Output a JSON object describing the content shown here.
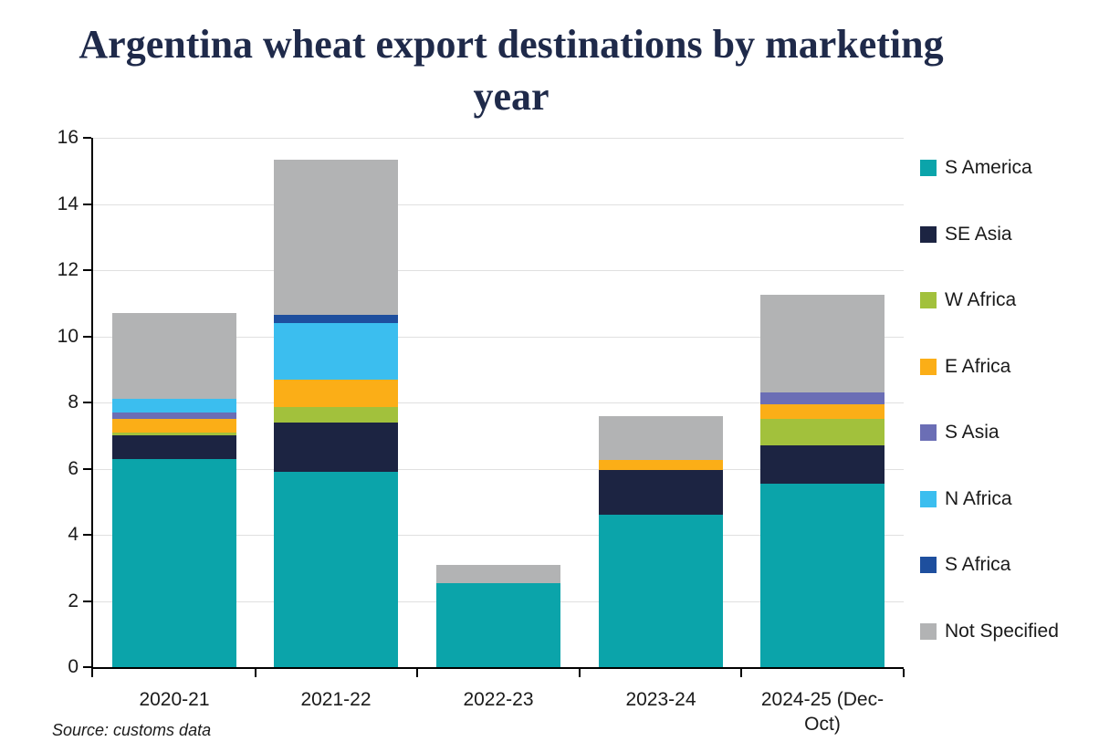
{
  "title": "Argentina wheat export destinations by marketing year",
  "source": "Source: customs data",
  "colors": {
    "title_text": "#1F2A4A",
    "axis": "#000000",
    "gridline": "#E0E0E0"
  },
  "chart_data": {
    "type": "bar",
    "subtype": "stacked-vertical",
    "title": "Argentina wheat export destinations by marketing year",
    "xlabel": "",
    "ylabel": "",
    "ylim": [
      0,
      16
    ],
    "yticks": [
      0,
      2,
      4,
      6,
      8,
      10,
      12,
      14,
      16
    ],
    "grid": true,
    "legend_position": "right",
    "categories": [
      "2020-21",
      "2021-22",
      "2022-23",
      "2023-24",
      "2024-25 (Dec-Oct)"
    ],
    "series": [
      {
        "name": "S America",
        "color": "#0BA4AA",
        "values": [
          6.3,
          5.9,
          2.55,
          4.6,
          5.55
        ]
      },
      {
        "name": "SE Asia",
        "color": "#1C2442",
        "values": [
          0.7,
          1.5,
          0,
          1.35,
          1.15
        ]
      },
      {
        "name": "W Africa",
        "color": "#A2C13C",
        "values": [
          0.1,
          0.45,
          0,
          0,
          0.8
        ]
      },
      {
        "name": "E Africa",
        "color": "#FBAE17",
        "values": [
          0.4,
          0.85,
          0,
          0.3,
          0.45
        ]
      },
      {
        "name": "S Asia",
        "color": "#6B6EB5",
        "values": [
          0.2,
          0,
          0,
          0,
          0.35
        ]
      },
      {
        "name": "N Africa",
        "color": "#3BBEEF",
        "values": [
          0.4,
          1.7,
          0,
          0,
          0
        ]
      },
      {
        "name": "S Africa",
        "color": "#1E4F9E",
        "values": [
          0,
          0.25,
          0,
          0,
          0
        ]
      },
      {
        "name": "Not Specified",
        "color": "#B2B3B4",
        "values": [
          2.6,
          4.7,
          0.55,
          1.35,
          2.95
        ]
      }
    ],
    "totals": [
      10.7,
      15.35,
      3.1,
      7.6,
      11.25
    ],
    "source": "Source: customs data"
  }
}
